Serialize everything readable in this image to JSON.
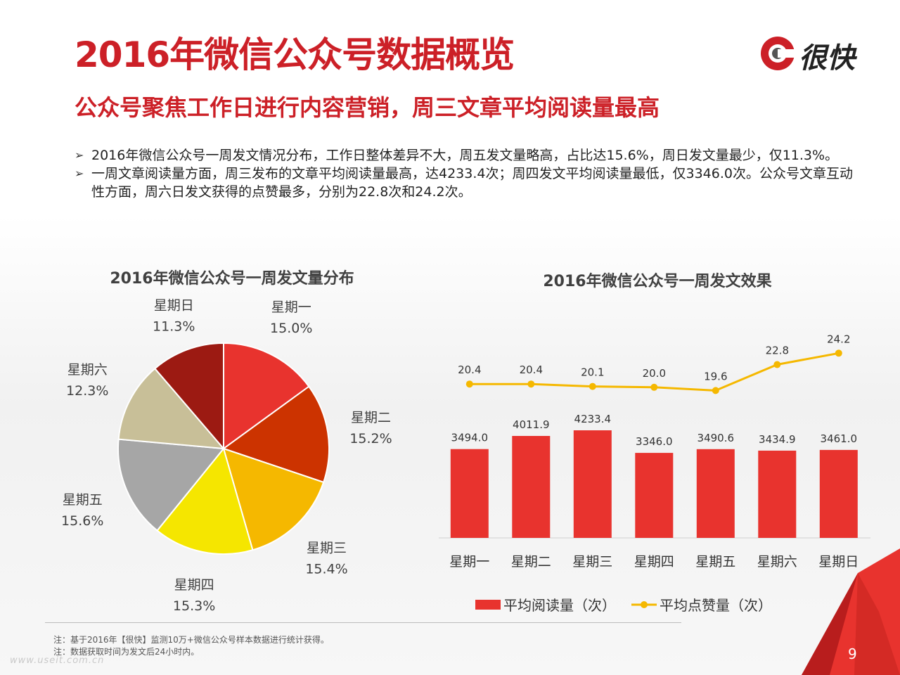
{
  "header": {
    "title": "2016年微信公众号数据概览",
    "subtitle": "公众号聚焦工作日进行内容营销，周三文章平均阅读量最高",
    "logo_text": "很快",
    "logo_icon": "logo-ring-icon"
  },
  "bullets": [
    "2016年微信公众号一周发文情况分布，工作日整体差异不大，周五发文量略高，占比达15.6%，周日发文量最少，仅11.3%。",
    "一周文章阅读量方面，周三发布的文章平均阅读量最高，达4233.4次；周四发文平均阅读量最低，仅3346.0次。公众号文章互动性方面，周六日发文获得的点赞最多，分别为22.8次和24.2次。"
  ],
  "bullet_marker": "➢",
  "chart_data": [
    {
      "type": "pie",
      "title": "2016年微信公众号一周发文量分布",
      "categories": [
        "星期一",
        "星期二",
        "星期三",
        "星期四",
        "星期五",
        "星期六",
        "星期日"
      ],
      "values": [
        15.0,
        15.2,
        15.4,
        15.3,
        15.6,
        12.3,
        11.3
      ],
      "value_labels": [
        "15.0%",
        "15.2%",
        "15.4%",
        "15.3%",
        "15.6%",
        "12.3%",
        "11.3%"
      ],
      "colors": [
        "#e8332e",
        "#cc3300",
        "#f5b800",
        "#f5e600",
        "#a6a6a6",
        "#c8bf98",
        "#9c1a12"
      ]
    },
    {
      "type": "bar",
      "title": "2016年微信公众号一周发文效果",
      "categories": [
        "星期一",
        "星期二",
        "星期三",
        "星期四",
        "星期五",
        "星期六",
        "星期日"
      ],
      "series": [
        {
          "name": "平均阅读量（次）",
          "type": "bar",
          "values": [
            3494.0,
            4011.9,
            4233.4,
            3346.0,
            3490.6,
            3434.9,
            3461.0
          ],
          "labels": [
            "3494.0",
            "4011.9",
            "4233.4",
            "3346.0",
            "3490.6",
            "3434.9",
            "3461.0"
          ],
          "color": "#e8332e"
        },
        {
          "name": "平均点赞量（次）",
          "type": "line",
          "values": [
            20.4,
            20.4,
            20.1,
            20.0,
            19.6,
            22.8,
            24.2
          ],
          "labels": [
            "20.4",
            "20.4",
            "20.1",
            "20.0",
            "19.6",
            "22.8",
            "24.2"
          ],
          "color": "#f5b800"
        }
      ],
      "legend": "bottom",
      "grid": false
    }
  ],
  "footer": {
    "notes": [
      "注：基于2016年【很快】监测10万+微信公众号样本数据进行统计获得。",
      "注：数据获取时间为发文后24小时内。"
    ],
    "watermark": "www.useit.com.cn",
    "page_number": "9"
  }
}
